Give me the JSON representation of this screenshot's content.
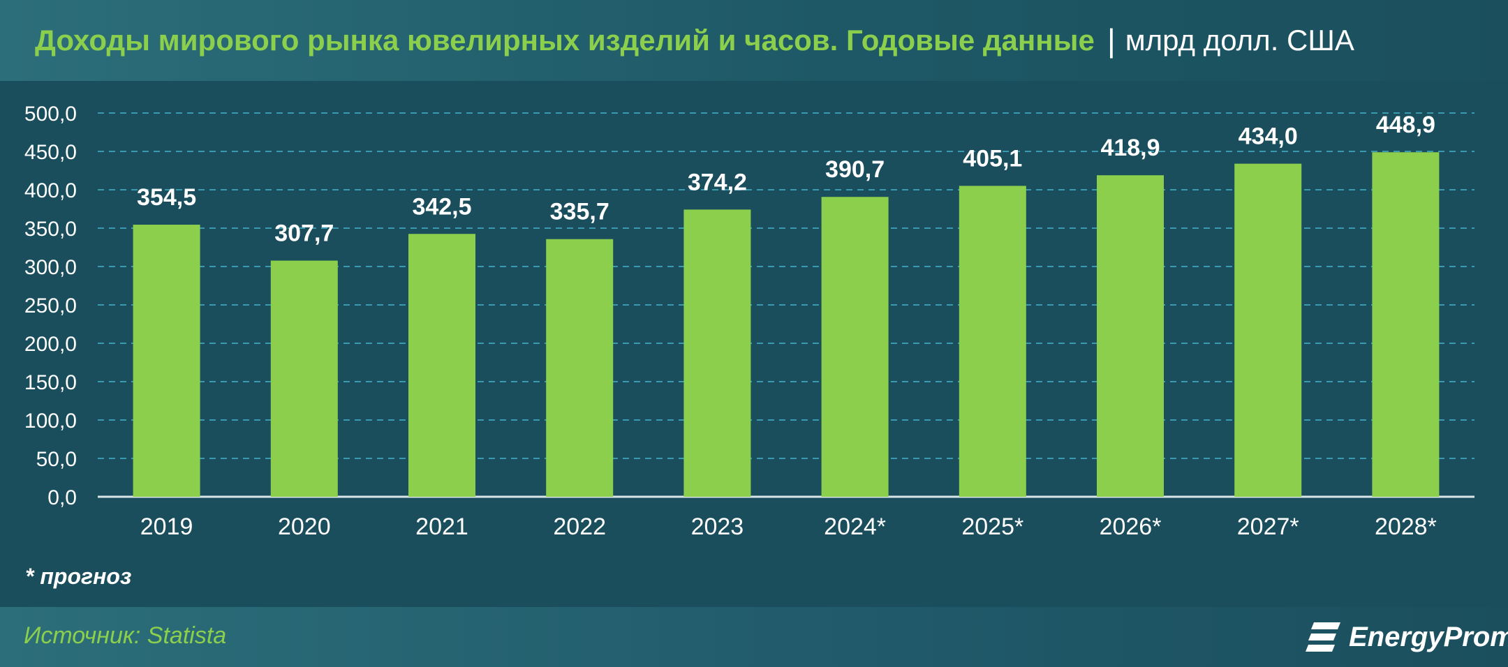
{
  "header": {
    "title": "Доходы мирового рынка ювелирных изделий и часов. Годовые данные",
    "separator": "|",
    "unit": "млрд долл. США"
  },
  "footnote": "* прогноз",
  "footer": {
    "source": "Источник: Statista",
    "logo_text": "EnergyProm",
    "logo_icon": "energyprom-logo-icon"
  },
  "colors": {
    "background": "#1a4e5c",
    "bar": "#8ccf4d",
    "title": "#8ccf4d",
    "text": "#ffffff",
    "grid": "#3a9ab0"
  },
  "chart_data": {
    "type": "bar",
    "categories": [
      "2019",
      "2020",
      "2021",
      "2022",
      "2023",
      "2024*",
      "2025*",
      "2026*",
      "2027*",
      "2028*"
    ],
    "values": [
      354.5,
      307.7,
      342.5,
      335.7,
      374.2,
      390.7,
      405.1,
      418.9,
      434.0,
      448.9
    ],
    "value_labels": [
      "354,5",
      "307,7",
      "342,5",
      "335,7",
      "374,2",
      "390,7",
      "405,1",
      "418,9",
      "434,0",
      "448,9"
    ],
    "y_ticks": [
      "0,0",
      "50,0",
      "100,0",
      "150,0",
      "200,0",
      "250,0",
      "300,0",
      "350,0",
      "400,0",
      "450,0",
      "500,0"
    ],
    "ylim": [
      0,
      500
    ],
    "ystep": 50,
    "grid": "horizontal dashed",
    "legend": "none"
  }
}
